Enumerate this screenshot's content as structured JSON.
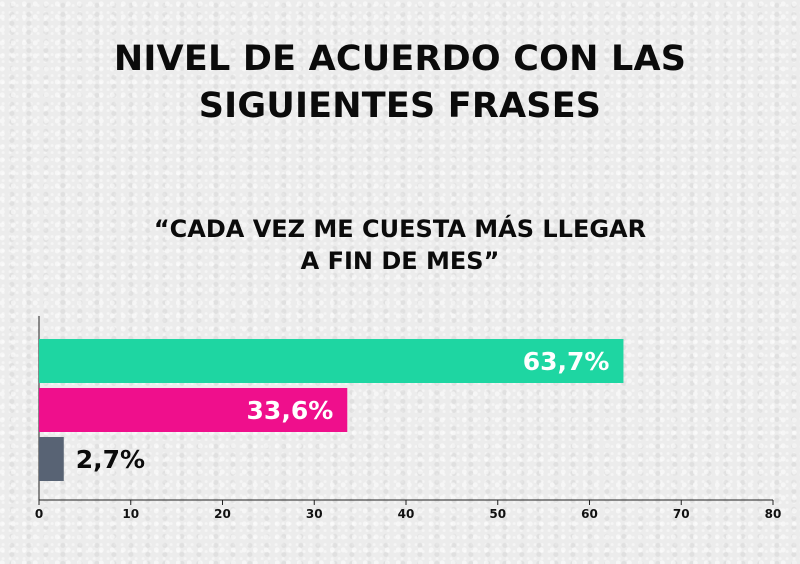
{
  "title": {
    "line1": "NIVEL DE ACUERDO CON LAS",
    "line2": "SIGUIENTES FRASES"
  },
  "subtitle": {
    "line1": "“CADA VEZ ME CUESTA MÁS LLEGAR",
    "line2": "A FIN DE MES”"
  },
  "colors": {
    "bar1": "#1ed6a2",
    "bar2": "#ef0f8c",
    "bar3": "#586374",
    "label_inside": "#ffffff",
    "label_outside": "#0b0b0b"
  },
  "chart_data": {
    "type": "bar",
    "orientation": "horizontal",
    "title": "NIVEL DE ACUERDO CON LAS SIGUIENTES FRASES",
    "subtitle": "“CADA VEZ ME CUESTA MÁS LLEGAR A FIN DE MES”",
    "values": [
      63.7,
      33.6,
      2.7
    ],
    "value_labels": [
      "63,7%",
      "33,6%",
      "2,7%"
    ],
    "xlim": [
      0,
      80
    ],
    "xticks": [
      0,
      10,
      20,
      30,
      40,
      50,
      60,
      70,
      80
    ],
    "grid": false,
    "legend": "none"
  }
}
